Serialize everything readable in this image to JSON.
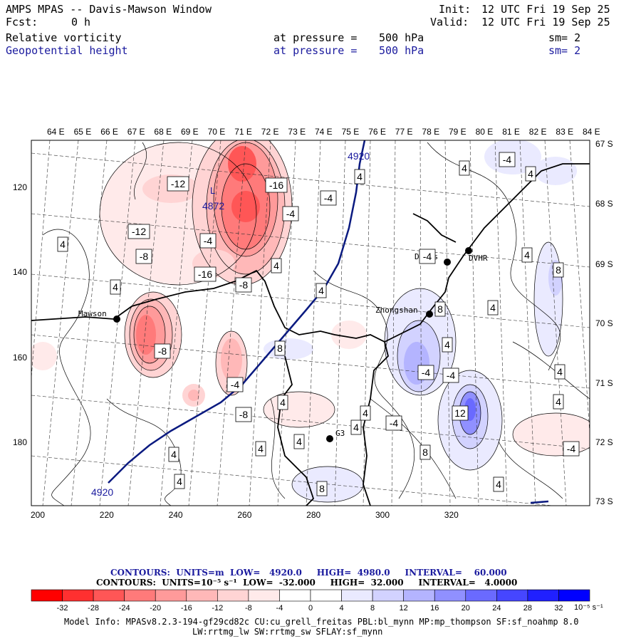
{
  "header": {
    "title": "AMPS MPAS -- Davis-Mawson Window",
    "fcst_label": "Fcst:",
    "fcst_value": "0 h",
    "init_label": "Init:",
    "init_value": "12 UTC Fri 19 Sep 25",
    "valid_label": "Valid:",
    "valid_value": "12 UTC Fri 19 Sep 25",
    "field1": "Relative vorticity",
    "field1_level": "at pressure =",
    "field1_value": "500 hPa",
    "field1_sm": "sm= 2",
    "field2": "Geopotential height",
    "field2_level": "at pressure =",
    "field2_value": "500 hPa",
    "field2_sm": "sm= 2"
  },
  "map": {
    "top_lon_labels": [
      "64 E",
      "65 E",
      "66 E",
      "67 E",
      "68 E",
      "69 E",
      "70 E",
      "71 E",
      "72 E",
      "73 E",
      "74 E",
      "75 E",
      "76 E",
      "77 E",
      "78 E",
      "79 E",
      "80 E",
      "81 E",
      "82 E",
      "83 E",
      "84 E"
    ],
    "right_lat_labels": [
      "67 S",
      "68 S",
      "69 S",
      "70 S",
      "71 S",
      "72 S",
      "73 S"
    ],
    "x_ticks": [
      "200",
      "220",
      "240",
      "260",
      "280",
      "300",
      "320"
    ],
    "y_ticks": [
      "120",
      "140",
      "160",
      "180"
    ],
    "stations": [
      "Mawson",
      "Davis",
      "DVHR",
      "Zhongshan",
      "G3"
    ],
    "height_labels": [
      "4920",
      "4872",
      "4920"
    ],
    "contour_labels": [
      "-12",
      "-16",
      "-4",
      "-4",
      "-12",
      "-4",
      "-8",
      "-16",
      "-8",
      "-8",
      "-4",
      "-8",
      "-4",
      "-4",
      "4",
      "4",
      "4",
      "4",
      "4",
      "4",
      "4",
      "4",
      "4",
      "4",
      "4",
      "4",
      "4",
      "4",
      "4",
      "4",
      "4",
      "8",
      "8",
      "8",
      "8",
      "8",
      "-4",
      "12",
      "-4",
      "-4",
      "-4",
      "4",
      "4",
      "4"
    ]
  },
  "footer": {
    "contours1_text": "CONTOURS:  UNITS=m  LOW=   4920.0     HIGH=  4980.0     INTERVAL=    60.000",
    "contours2_text": "CONTOURS:  UNITS=10⁻⁵ s⁻¹  LOW=  -32.000     HIGH=  32.000     INTERVAL=   4.0000",
    "colorbar_labels": [
      "-32",
      "-28",
      "-24",
      "-20",
      "-16",
      "-12",
      "-8",
      "-4",
      "0",
      "4",
      "8",
      "12",
      "16",
      "20",
      "24",
      "28",
      "32"
    ],
    "colorbar_units": "10⁻⁵ s⁻¹",
    "model_info": "Model Info: MPASv8.2.3-194-gf29cd82c CU:cu_grell_freitas PBL:bl_mynn MP:mp_thompson SF:sf_noahmp 8.0",
    "model_info2": "LW:rrtmg_lw SW:rrtmg_sw SFLAY:sf_mynn",
    "colors": {
      "neg": [
        "#ff0000",
        "#ff3030",
        "#ff5656",
        "#ff7a7a",
        "#ff9a9a",
        "#ffb8b8",
        "#ffd4d4",
        "#ffeaea"
      ],
      "pos": [
        "#eaeaff",
        "#d2d2ff",
        "#b4b4ff",
        "#9090ff",
        "#6a6aff",
        "#4646ff",
        "#2020ff",
        "#0000ff"
      ],
      "white": "#ffffff",
      "height_line": "#0a1a80"
    }
  }
}
